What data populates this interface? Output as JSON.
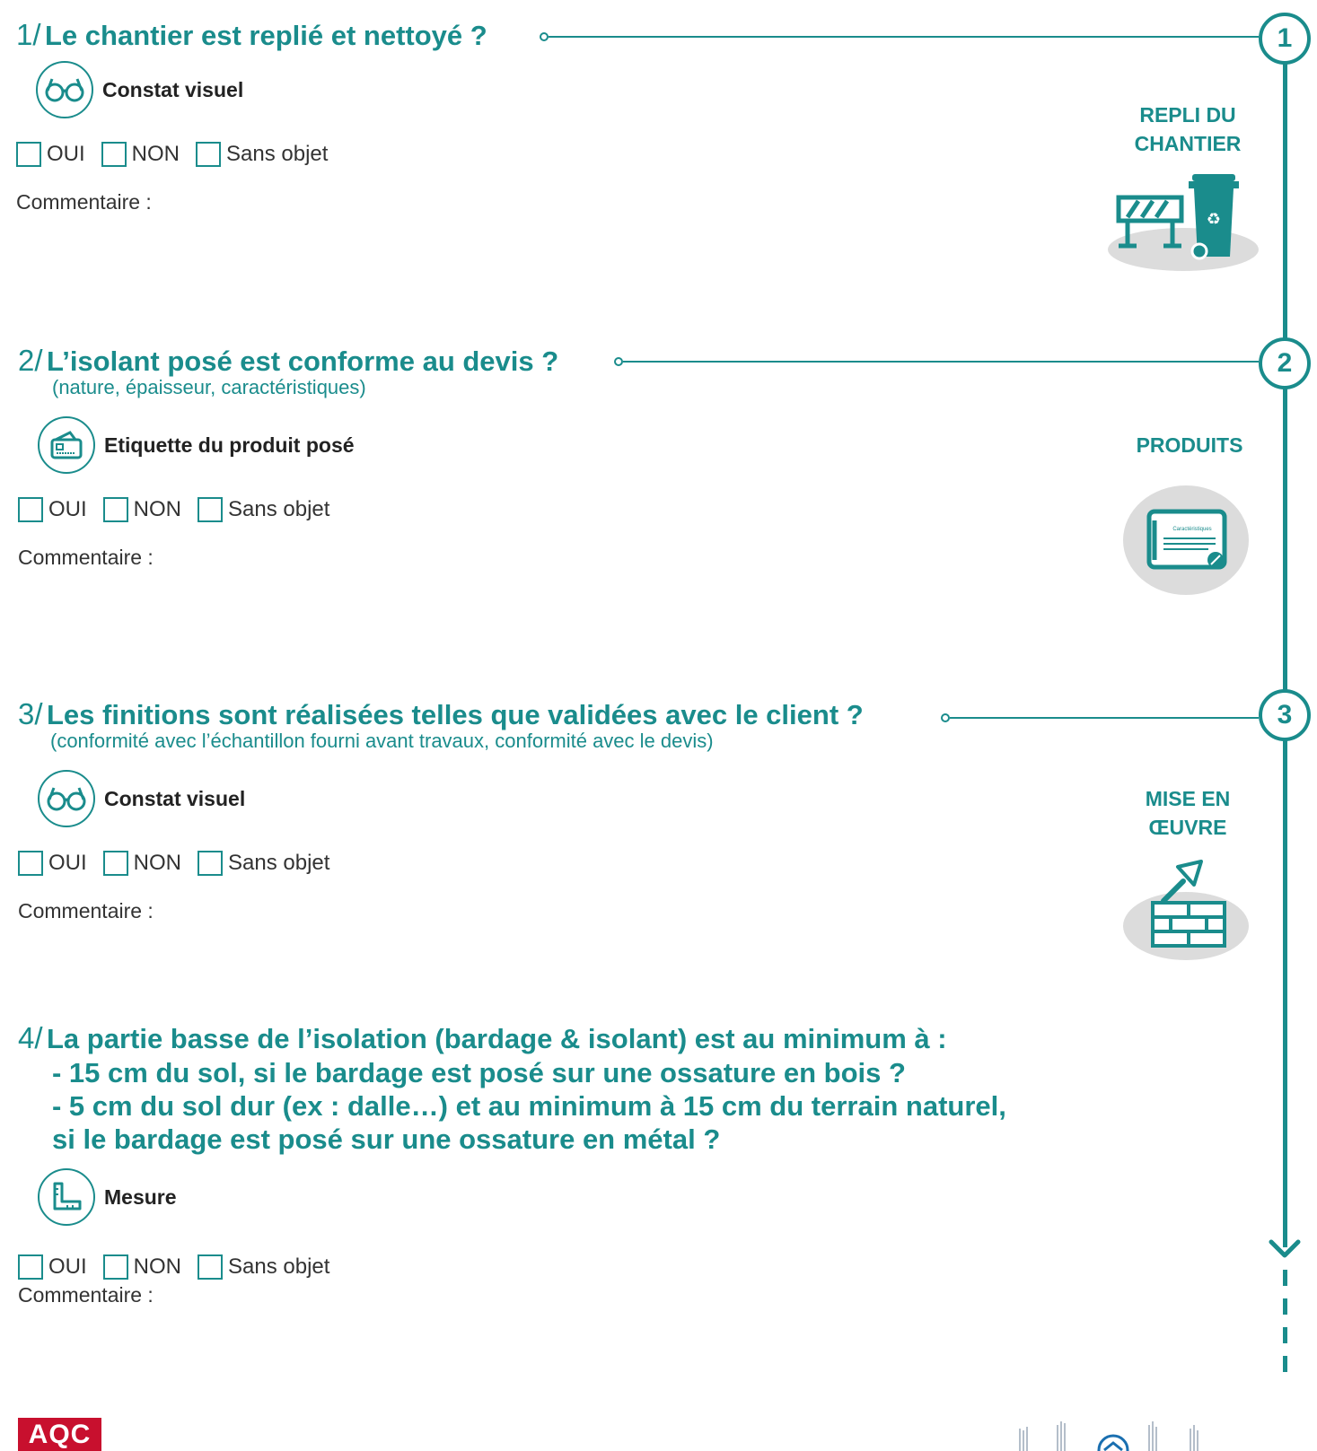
{
  "questions": [
    {
      "number": "1/",
      "title": "Le chantier est replié et nettoyé ?",
      "subtitle": "",
      "method": "Constat visuel",
      "method_icon": "glasses-icon",
      "options": [
        "OUI",
        "NON",
        "Sans objet"
      ],
      "comment_label": "Commentaire :"
    },
    {
      "number": "2/",
      "title": "L’isolant posé est conforme au devis ?",
      "subtitle": "(nature, épaisseur, caractéristiques)",
      "method": "Etiquette du produit posé",
      "method_icon": "product-label-icon",
      "options": [
        "OUI",
        "NON",
        "Sans objet"
      ],
      "comment_label": "Commentaire :"
    },
    {
      "number": "3/",
      "title": "Les finitions sont réalisées telles que validées avec le client ?",
      "subtitle": "(conformité avec l’échantillon fourni avant travaux, conformité avec le devis)",
      "method": "Constat visuel",
      "method_icon": "glasses-icon",
      "options": [
        "OUI",
        "NON",
        "Sans objet"
      ],
      "comment_label": "Commentaire :"
    },
    {
      "number": "4/",
      "title_lines": [
        "La partie basse de l’isolation (bardage & isolant) est au minimum à :",
        "- 15 cm du sol, si le bardage est posé sur une ossature en bois ?",
        "- 5 cm du sol dur (ex : dalle…) et au minimum à 15 cm du terrain naturel,",
        "si le bardage est posé sur une ossature en métal ?"
      ],
      "method": "Mesure",
      "method_icon": "ruler-square-icon",
      "options": [
        "OUI",
        "NON",
        "Sans objet"
      ],
      "comment_label": "Commentaire :"
    }
  ],
  "timeline": {
    "steps": [
      "1",
      "2",
      "3"
    ],
    "categories": [
      {
        "label_lines": [
          "REPLI DU",
          "CHANTIER"
        ],
        "icon": "barrier-and-bin-icon"
      },
      {
        "label_lines": [
          "PRODUITS"
        ],
        "icon": "certificate-icon"
      },
      {
        "label_lines": [
          "MISE EN",
          "ŒUVRE"
        ],
        "icon": "trowel-bricks-icon"
      }
    ],
    "certificate_text": "Caractéristiques"
  },
  "footer": {
    "left_logo": "AQC",
    "right_logo": "PROFEEL"
  },
  "colors": {
    "accent": "#1a8c8c",
    "logo_red": "#c8102e"
  }
}
